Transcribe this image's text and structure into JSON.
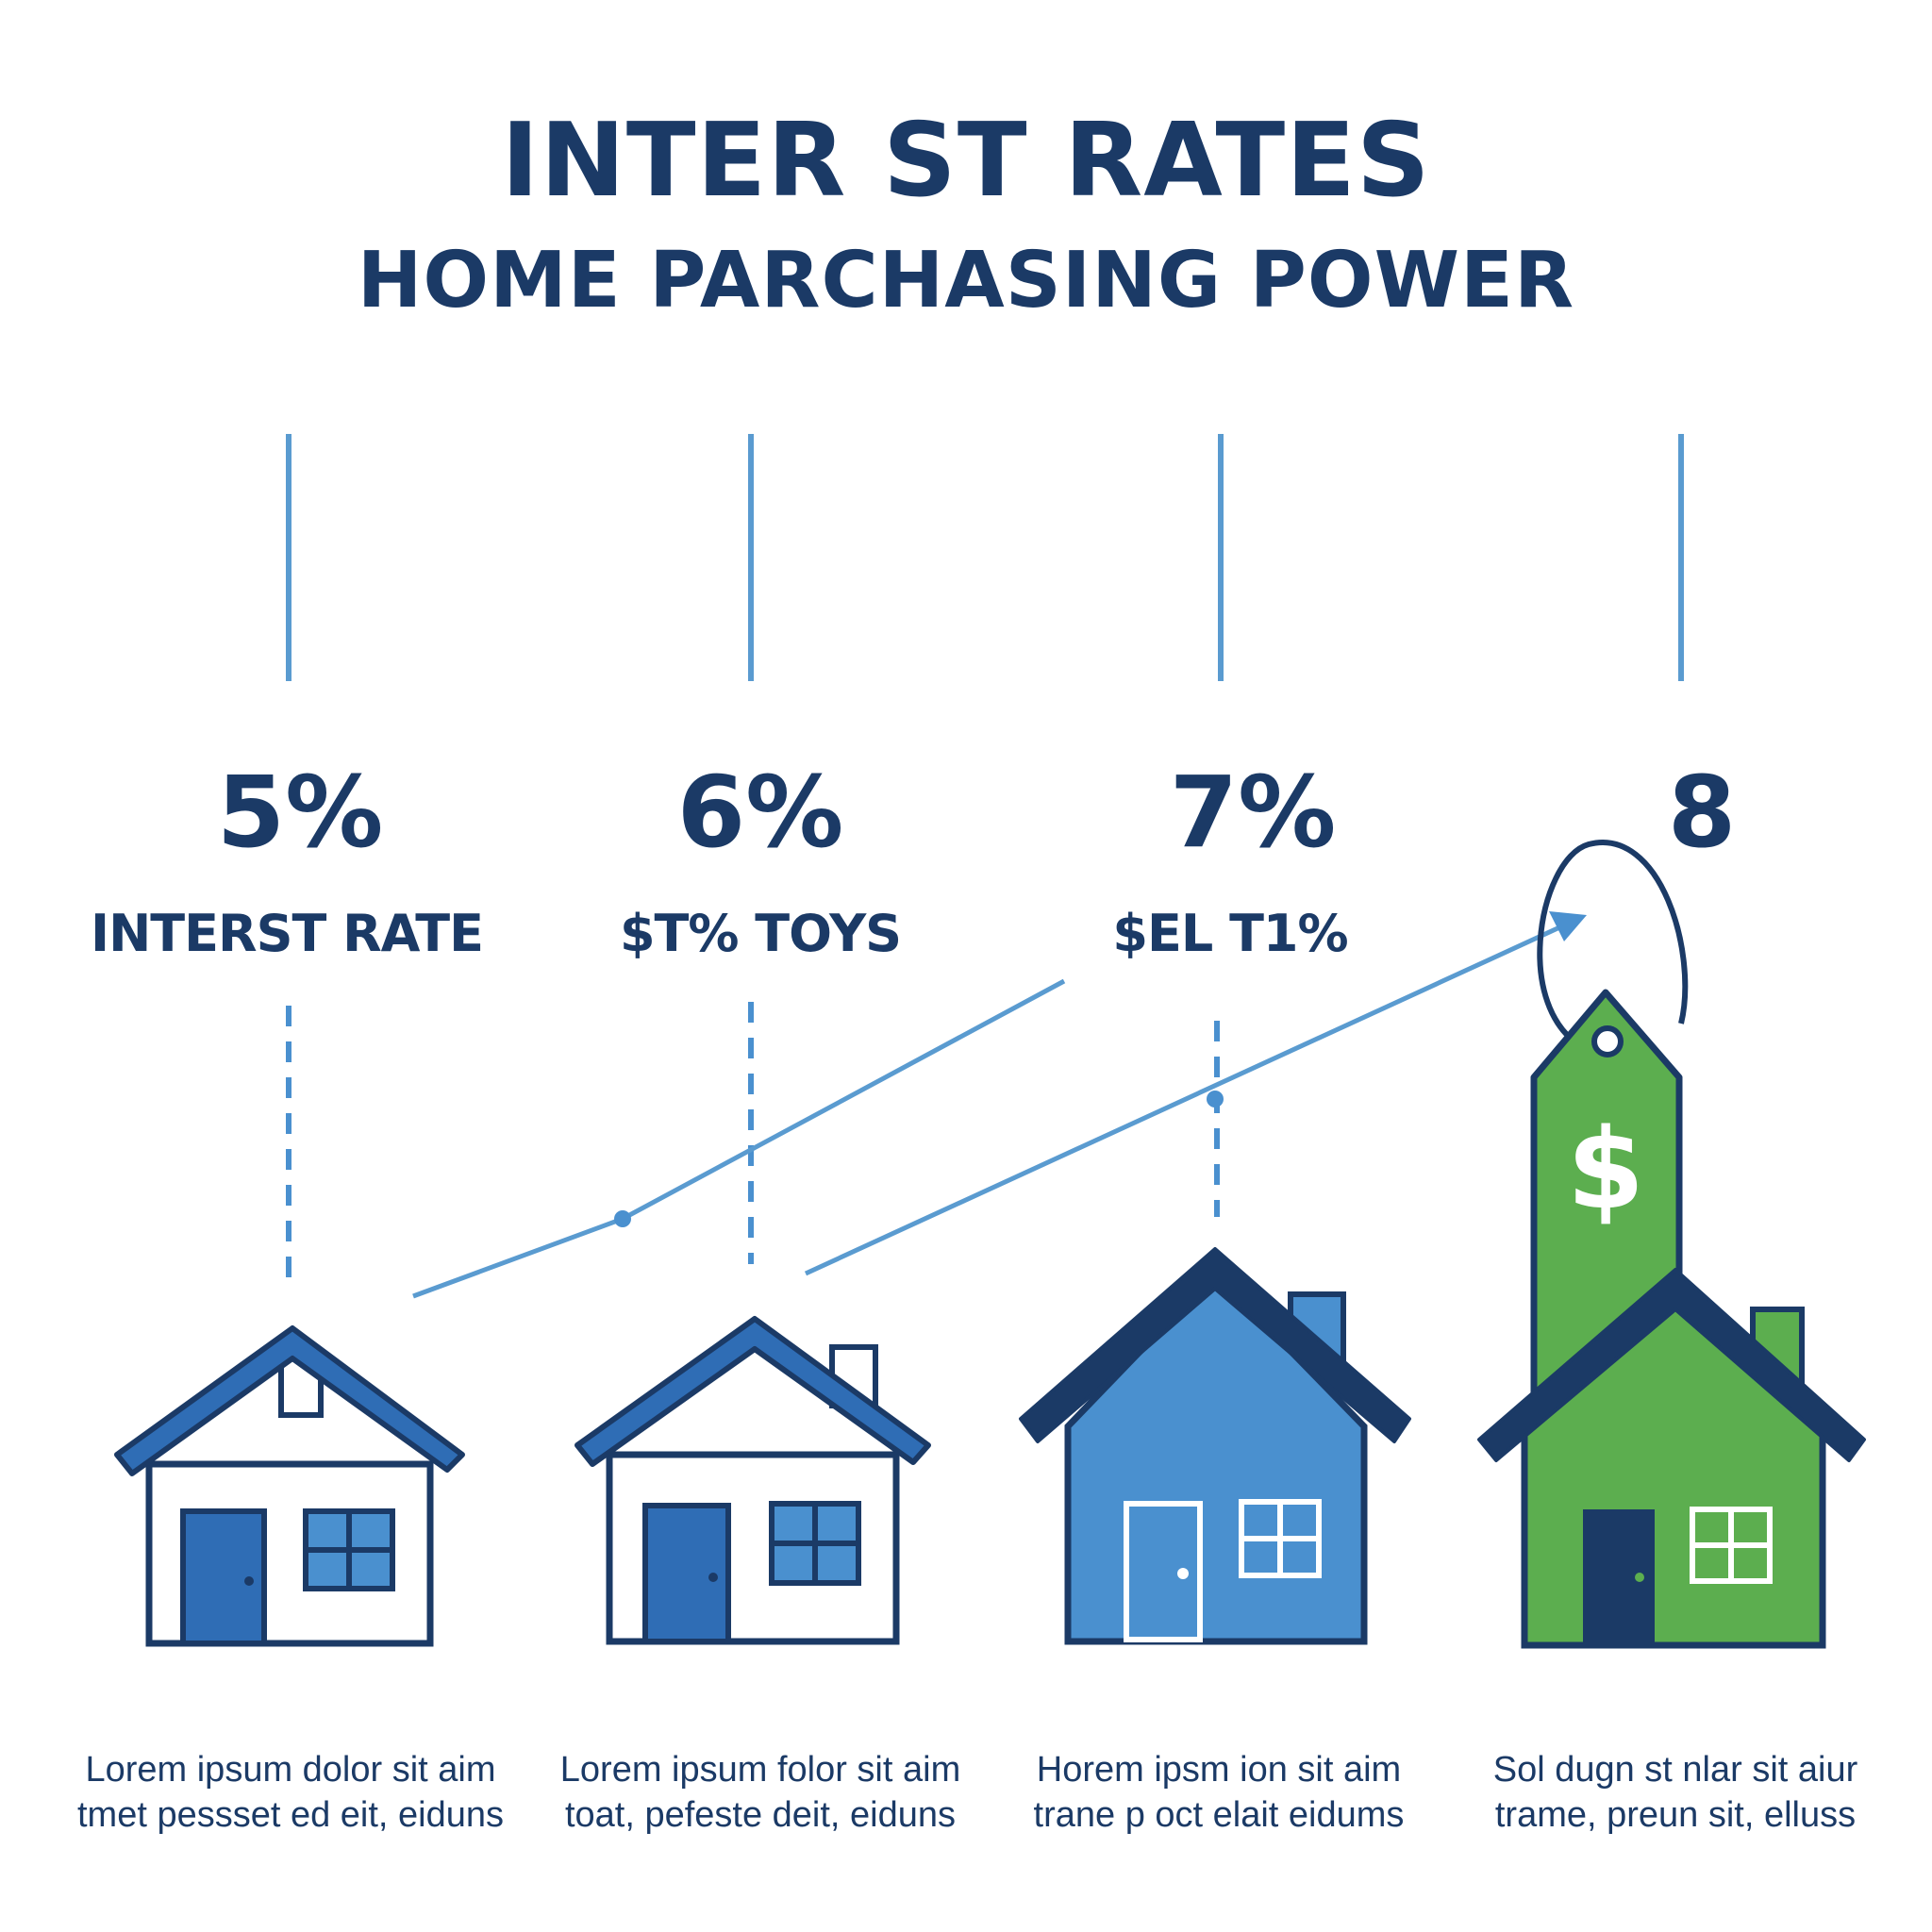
{
  "header": {
    "title": "INTER ST RATES",
    "subtitle": "HOME PARCHASING POWER"
  },
  "columns": [
    {
      "rate": "5%",
      "label": "INTERST RATE",
      "caption_line1": "Lorem  ipsum  dolor sit aim",
      "caption_line2": "tmet  pessset  ed eit,  eiduns"
    },
    {
      "rate": "6%",
      "label": "$T% TOYS",
      "caption_line1": "Lorem  ipsum  folor sit aim",
      "caption_line2": "toat,  pefeste  deit,  eiduns"
    },
    {
      "rate": "7%",
      "label": "$EL T1%",
      "caption_line1": "Horem  ipsm  ion sit aim",
      "caption_line2": "trane  p oct elait eidums"
    },
    {
      "rate": "8",
      "label": "",
      "caption_line1": "Sol dugn st nlar sit aiur",
      "caption_line2": "trame,  preun sit,  elluss"
    }
  ],
  "price_tag": {
    "symbol": "$",
    "icon": "dollar-price-tag-icon"
  },
  "colors": {
    "navy": "#1b3a66",
    "blue": "#2f6db5",
    "light_blue": "#4a90cf",
    "line_blue": "#5a9bd0",
    "green": "#5cae4f"
  }
}
